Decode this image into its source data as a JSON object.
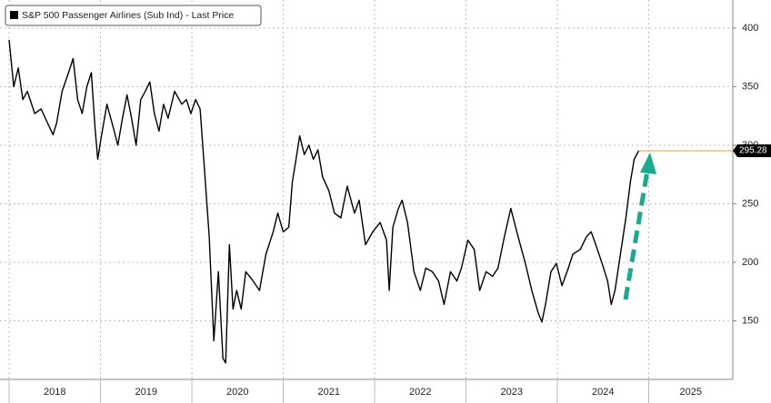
{
  "chart_data": {
    "type": "line",
    "series": [
      {
        "name": "S&P 500 Passenger Airlines (Sub Ind) - Last Price",
        "color": "#000000",
        "x": [
          2018.0,
          2018.05,
          2018.1,
          2018.15,
          2018.2,
          2018.28,
          2018.35,
          2018.42,
          2018.48,
          2018.52,
          2018.58,
          2018.65,
          2018.7,
          2018.75,
          2018.8,
          2018.85,
          2018.9,
          2018.94,
          2018.97,
          2019.01,
          2019.07,
          2019.14,
          2019.19,
          2019.24,
          2019.29,
          2019.34,
          2019.39,
          2019.44,
          2019.49,
          2019.54,
          2019.59,
          2019.64,
          2019.69,
          2019.74,
          2019.81,
          2019.89,
          2019.94,
          2019.99,
          2020.04,
          2020.09,
          2020.14,
          2020.19,
          2020.24,
          2020.29,
          2020.34,
          2020.37,
          2020.41,
          2020.45,
          2020.49,
          2020.54,
          2020.59,
          2020.67,
          2020.74,
          2020.81,
          2020.89,
          2020.94,
          2021.0,
          2021.06,
          2021.1,
          2021.14,
          2021.18,
          2021.23,
          2021.28,
          2021.33,
          2021.38,
          2021.43,
          2021.5,
          2021.56,
          2021.63,
          2021.7,
          2021.78,
          2021.83,
          2021.9,
          2021.98,
          2022.06,
          2022.13,
          2022.16,
          2022.2,
          2022.26,
          2022.3,
          2022.36,
          2022.43,
          2022.5,
          2022.56,
          2022.63,
          2022.7,
          2022.76,
          2022.83,
          2022.9,
          2022.95,
          2023.02,
          2023.09,
          2023.15,
          2023.22,
          2023.29,
          2023.35,
          2023.42,
          2023.49,
          2023.57,
          2023.65,
          2023.72,
          2023.79,
          2023.83,
          2023.87,
          2023.93,
          2023.99,
          2024.05,
          2024.12,
          2024.17,
          2024.25,
          2024.32,
          2024.37,
          2024.42,
          2024.49,
          2024.55,
          2024.59,
          2024.63,
          2024.69,
          2024.75,
          2024.8,
          2024.84,
          2024.89
        ],
        "values": [
          390,
          350,
          366,
          339,
          346,
          327,
          331,
          319,
          309,
          319,
          346,
          362,
          374,
          339,
          327,
          350,
          362,
          315,
          288,
          308,
          335,
          315,
          300,
          323,
          343,
          323,
          300,
          339,
          346,
          354,
          327,
          312,
          335,
          323,
          346,
          335,
          339,
          327,
          339,
          331,
          277,
          222,
          133,
          192,
          118,
          114,
          215,
          160,
          176,
          160,
          192,
          184,
          176,
          207,
          226,
          242,
          226,
          230,
          269,
          288,
          308,
          292,
          300,
          288,
          296,
          273,
          261,
          242,
          238,
          265,
          242,
          253,
          215,
          226,
          234,
          219,
          176,
          230,
          246,
          253,
          234,
          192,
          176,
          195,
          192,
          184,
          164,
          192,
          184,
          195,
          219,
          211,
          176,
          192,
          188,
          195,
          222,
          246,
          222,
          199,
          176,
          157,
          149,
          164,
          192,
          199,
          180,
          195,
          207,
          211,
          222,
          226,
          215,
          199,
          184,
          164,
          176,
          207,
          238,
          269,
          288,
          295.28
        ]
      }
    ],
    "last_price_color": "#f5a25d",
    "xlim": [
      2017.9,
      2025.92
    ],
    "xticks": [
      2018,
      2019,
      2020,
      2021,
      2022,
      2023,
      2024,
      2025
    ],
    "ylim": [
      100,
      424
    ],
    "yticks": [
      150,
      200,
      250,
      300,
      350,
      400
    ],
    "grid": true
  }
}
